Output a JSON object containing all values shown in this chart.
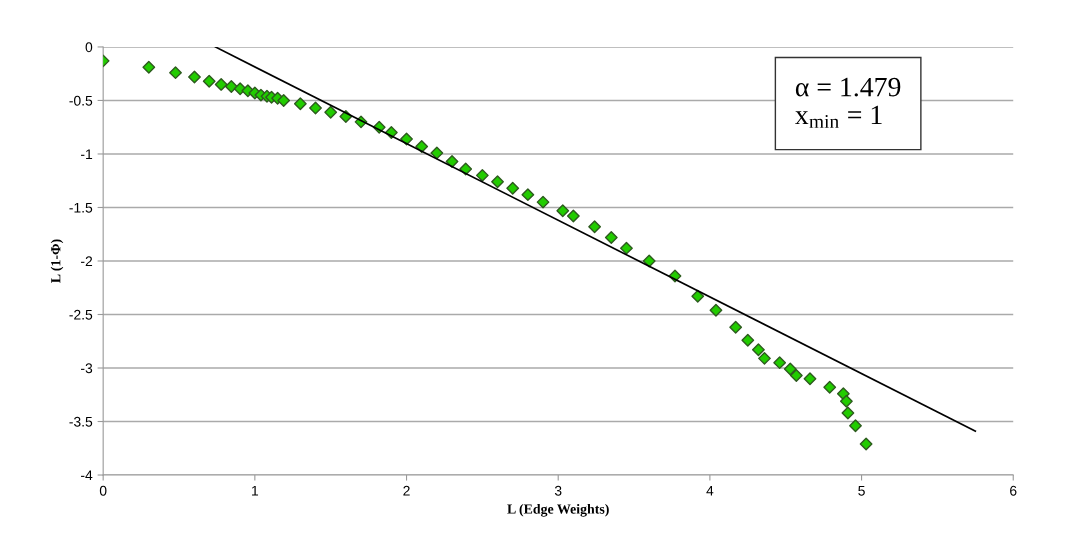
{
  "chart_data": {
    "type": "scatter",
    "xlabel": "L (Edge Weights)",
    "ylabel": "L (1-Φ)",
    "xlim": [
      0,
      6
    ],
    "ylim": [
      -4,
      0
    ],
    "xticks": [
      0,
      1,
      2,
      3,
      4,
      5,
      6
    ],
    "yticks": [
      -4,
      -3.5,
      -3,
      -2.5,
      -2,
      -1.5,
      -1,
      -0.5,
      0
    ],
    "grid": "y",
    "legend": false,
    "annotations": [
      "α = 1.479",
      "x$_{min}$ = 1"
    ],
    "series": [
      {
        "marker": "diamond",
        "color": "#22cc00",
        "x": [
          0,
          0.301,
          0.477,
          0.602,
          0.699,
          0.778,
          0.845,
          0.903,
          0.954,
          1.0,
          1.04,
          1.08,
          1.11,
          1.15,
          1.19,
          1.3,
          1.4,
          1.5,
          1.6,
          1.7,
          1.82,
          1.9,
          2.0,
          2.1,
          2.2,
          2.3,
          2.39,
          2.5,
          2.6,
          2.7,
          2.8,
          2.9,
          3.03,
          3.1,
          3.24,
          3.35,
          3.45,
          3.6,
          3.77,
          3.92,
          4.04,
          4.17,
          4.25,
          4.32,
          4.36,
          4.46,
          4.53,
          4.57,
          4.66,
          4.79,
          4.88,
          4.9,
          4.91,
          4.96,
          5.03
        ],
        "values": [
          -0.13,
          -0.19,
          -0.24,
          -0.28,
          -0.32,
          -0.35,
          -0.37,
          -0.39,
          -0.41,
          -0.43,
          -0.45,
          -0.46,
          -0.47,
          -0.48,
          -0.5,
          -0.53,
          -0.57,
          -0.61,
          -0.65,
          -0.7,
          -0.75,
          -0.8,
          -0.86,
          -0.93,
          -0.99,
          -1.07,
          -1.14,
          -1.2,
          -1.26,
          -1.32,
          -1.38,
          -1.45,
          -1.53,
          -1.58,
          -1.68,
          -1.78,
          -1.88,
          -2.0,
          -2.14,
          -2.33,
          -2.46,
          -2.62,
          -2.74,
          -2.83,
          -2.91,
          -2.95,
          -3.01,
          -3.07,
          -3.1,
          -3.18,
          -3.24,
          -3.31,
          -3.42,
          -3.54,
          -3.71
        ]
      },
      {
        "type": "line",
        "color": "#000000",
        "x": [
          0.74,
          5.75
        ],
        "values": [
          0,
          -3.59
        ],
        "line_style": "solid"
      }
    ]
  }
}
